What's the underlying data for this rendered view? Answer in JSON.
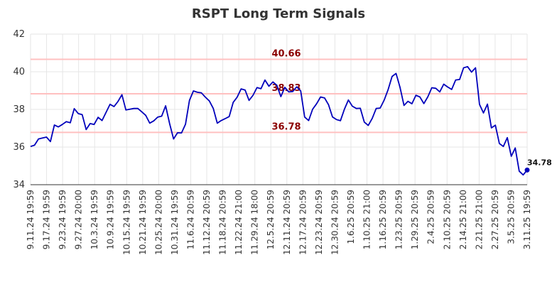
{
  "chart_data": {
    "type": "line",
    "title": "RSPT Long Term Signals",
    "xlabel": "",
    "ylabel": "",
    "ylim": [
      34,
      42
    ],
    "y_ticks": [
      34,
      36,
      38,
      40,
      42
    ],
    "grid": true,
    "x_tick_labels": [
      "9.11.24 19:59",
      "9.17.24 19:59",
      "9.23.24 19:59",
      "9.27.24 20:00",
      "10.3.24 19:59",
      "10.9.24 19:59",
      "10.15.24 19:59",
      "10.21.24 19:59",
      "10.25.24 20:00",
      "10.31.24 19:59",
      "11.6.24 20:59",
      "11.12.24 20:59",
      "11.18.24 20:59",
      "11.22.24 21:00",
      "11.29.24 18:00",
      "12.5.24 20:59",
      "12.11.24 20:59",
      "12.17.24 20:59",
      "12.23.24 20:59",
      "12.30.24 20:59",
      "1.6.25 20:59",
      "1.10.25 21:00",
      "1.16.25 20:59",
      "1.23.25 20:59",
      "1.29.25 20:59",
      "2.4.25 20:59",
      "2.10.25 20:59",
      "2.14.25 21:00",
      "2.21.25 21:00",
      "2.27.25 20:59",
      "3.5.25 20:59",
      "3.11.25 19:59"
    ],
    "reference_lines": [
      {
        "value": 40.66,
        "label": "40.66",
        "color": "#ffc0c0"
      },
      {
        "value": 38.83,
        "label": "38.83",
        "color": "#ffc0c0"
      },
      {
        "value": 36.78,
        "label": "36.78",
        "color": "#ffc0c0"
      }
    ],
    "reference_label_color": "#8b0000",
    "series": [
      {
        "color": "#0000bb",
        "values": [
          36.03,
          36.1,
          36.43,
          36.48,
          36.53,
          36.29,
          37.17,
          37.07,
          37.2,
          37.35,
          37.29,
          38.04,
          37.78,
          37.72,
          36.93,
          37.25,
          37.2,
          37.58,
          37.41,
          37.84,
          38.27,
          38.15,
          38.42,
          38.78,
          37.97,
          38.01,
          38.05,
          38.05,
          37.87,
          37.68,
          37.27,
          37.39,
          37.59,
          37.64,
          38.19,
          37.25,
          36.43,
          36.76,
          36.75,
          37.21,
          38.48,
          38.98,
          38.91,
          38.88,
          38.65,
          38.45,
          38.05,
          37.27,
          37.41,
          37.51,
          37.62,
          38.37,
          38.65,
          39.09,
          39.03,
          38.48,
          38.75,
          39.16,
          39.1,
          39.56,
          39.23,
          39.46,
          39.28,
          38.68,
          39.17,
          38.93,
          38.95,
          39.2,
          38.98,
          37.59,
          37.41,
          38.01,
          38.3,
          38.66,
          38.61,
          38.25,
          37.6,
          37.46,
          37.4,
          38.01,
          38.5,
          38.17,
          38.05,
          38.06,
          37.33,
          37.15,
          37.52,
          38.05,
          38.07,
          38.49,
          39.05,
          39.75,
          39.91,
          39.17,
          38.21,
          38.43,
          38.3,
          38.75,
          38.66,
          38.31,
          38.67,
          39.15,
          39.12,
          38.93,
          39.34,
          39.19,
          39.06,
          39.56,
          39.59,
          40.21,
          40.27,
          39.98,
          40.21,
          38.27,
          37.81,
          38.28,
          37.02,
          37.16,
          36.19,
          36.03,
          36.5,
          35.51,
          35.95,
          34.72,
          34.52,
          34.78
        ]
      }
    ],
    "last_value_label": "34.78"
  }
}
